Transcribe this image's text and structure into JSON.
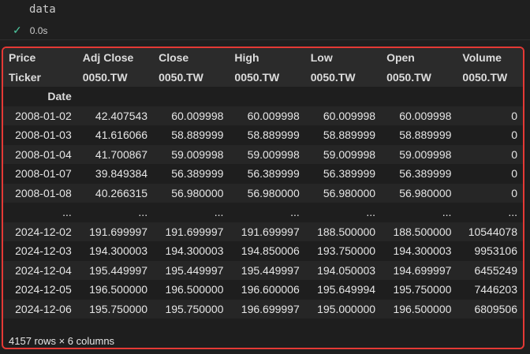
{
  "cell": {
    "code": "data",
    "status_icon": "check-icon",
    "exec_time": "0.0s"
  },
  "table": {
    "header_row1": {
      "index_label": "Price",
      "columns": [
        "Adj Close",
        "Close",
        "High",
        "Low",
        "Open",
        "Volume"
      ]
    },
    "header_row2": {
      "index_label": "Ticker",
      "columns": [
        "0050.TW",
        "0050.TW",
        "0050.TW",
        "0050.TW",
        "0050.TW",
        "0050.TW"
      ]
    },
    "index_name": "Date",
    "rows": [
      [
        "2008-01-02",
        "42.407543",
        "60.009998",
        "60.009998",
        "60.009998",
        "60.009998",
        "0"
      ],
      [
        "2008-01-03",
        "41.616066",
        "58.889999",
        "58.889999",
        "58.889999",
        "58.889999",
        "0"
      ],
      [
        "2008-01-04",
        "41.700867",
        "59.009998",
        "59.009998",
        "59.009998",
        "59.009998",
        "0"
      ],
      [
        "2008-01-07",
        "39.849384",
        "56.389999",
        "56.389999",
        "56.389999",
        "56.389999",
        "0"
      ],
      [
        "2008-01-08",
        "40.266315",
        "56.980000",
        "56.980000",
        "56.980000",
        "56.980000",
        "0"
      ],
      [
        "...",
        "...",
        "...",
        "...",
        "...",
        "...",
        "..."
      ],
      [
        "2024-12-02",
        "191.699997",
        "191.699997",
        "191.699997",
        "188.500000",
        "188.500000",
        "10544078"
      ],
      [
        "2024-12-03",
        "194.300003",
        "194.300003",
        "194.850006",
        "193.750000",
        "194.300003",
        "9953106"
      ],
      [
        "2024-12-04",
        "195.449997",
        "195.449997",
        "195.449997",
        "194.050003",
        "194.699997",
        "6455249"
      ],
      [
        "2024-12-05",
        "196.500000",
        "196.500000",
        "196.600006",
        "195.649994",
        "195.750000",
        "7446203"
      ],
      [
        "2024-12-06",
        "195.750000",
        "195.750000",
        "196.699997",
        "195.000000",
        "196.500000",
        "6809506"
      ]
    ],
    "footer": "4157 rows × 6 columns"
  },
  "colors": {
    "highlight_border": "#e53935",
    "background": "#1f1f1f"
  }
}
